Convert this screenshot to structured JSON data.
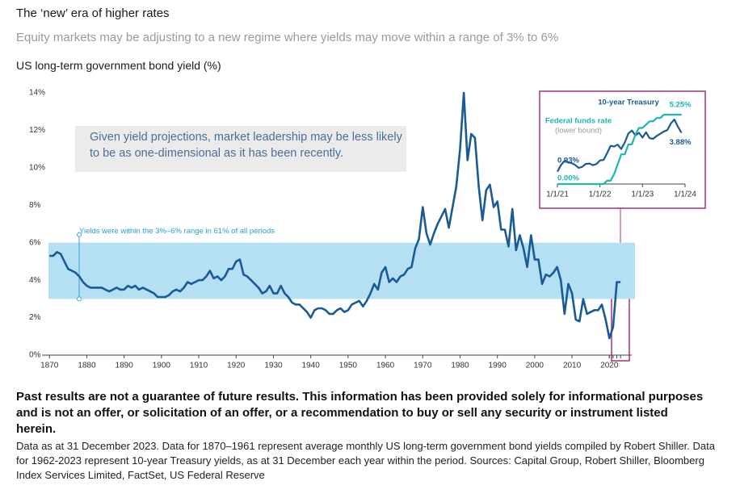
{
  "header": {
    "title": "The ‘new’ era of higher rates",
    "subtitle": "Equity markets may be adjusting to a new regime where yields may move within a range of 3% to 6%"
  },
  "chart_data": [
    {
      "type": "line",
      "title": "US long-term government bond yield (%)",
      "callout": "Given yield projections, market leadership may be less likely to be as one-dimensional as it has been recently.",
      "band": [
        3,
        6
      ],
      "band_label": "Yields were within the 3%–6% range in 61% of all periods",
      "band_color": "#b5dff3",
      "xlim": [
        1868,
        2026
      ],
      "ylim": [
        0,
        14
      ],
      "xticks": [
        1870,
        1880,
        1890,
        1900,
        1910,
        1920,
        1930,
        1940,
        1950,
        1960,
        1970,
        1980,
        1990,
        2000,
        2010,
        2020
      ],
      "yticks": [
        {
          "value": 0,
          "label": "0%"
        },
        {
          "value": 2,
          "label": "2%"
        },
        {
          "value": 4,
          "label": "4%"
        },
        {
          "value": 6,
          "label": "6%"
        },
        {
          "value": 8,
          "label": "8%"
        },
        {
          "value": 10,
          "label": "10%"
        },
        {
          "value": 12,
          "label": "12%"
        },
        {
          "value": 14,
          "label": "14%"
        }
      ],
      "x": [
        1870,
        1871,
        1872,
        1873,
        1874,
        1875,
        1876,
        1877,
        1878,
        1879,
        1880,
        1881,
        1882,
        1883,
        1884,
        1885,
        1886,
        1887,
        1888,
        1889,
        1890,
        1891,
        1892,
        1893,
        1894,
        1895,
        1896,
        1897,
        1898,
        1899,
        1900,
        1901,
        1902,
        1903,
        1904,
        1905,
        1906,
        1907,
        1908,
        1909,
        1910,
        1911,
        1912,
        1913,
        1914,
        1915,
        1916,
        1917,
        1918,
        1919,
        1920,
        1921,
        1922,
        1923,
        1924,
        1925,
        1926,
        1927,
        1928,
        1929,
        1930,
        1931,
        1932,
        1933,
        1934,
        1935,
        1936,
        1937,
        1938,
        1939,
        1940,
        1941,
        1942,
        1943,
        1944,
        1945,
        1946,
        1947,
        1948,
        1949,
        1950,
        1951,
        1952,
        1953,
        1954,
        1955,
        1956,
        1957,
        1958,
        1959,
        1960,
        1961,
        1962,
        1963,
        1964,
        1965,
        1966,
        1967,
        1968,
        1969,
        1970,
        1971,
        1972,
        1973,
        1974,
        1975,
        1976,
        1977,
        1978,
        1979,
        1980,
        1981,
        1982,
        1983,
        1984,
        1985,
        1986,
        1987,
        1988,
        1989,
        1990,
        1991,
        1992,
        1993,
        1994,
        1995,
        1996,
        1997,
        1998,
        1999,
        2000,
        2001,
        2002,
        2003,
        2004,
        2005,
        2006,
        2007,
        2008,
        2009,
        2010,
        2011,
        2012,
        2013,
        2014,
        2015,
        2016,
        2017,
        2018,
        2019,
        2020,
        2021,
        2022,
        2023
      ],
      "series": [
        {
          "name": "US long-term government bond yield",
          "color": "#1a5a96",
          "values": [
            5.3,
            5.3,
            5.5,
            5.4,
            5.0,
            4.6,
            4.5,
            4.4,
            4.2,
            3.9,
            3.7,
            3.6,
            3.6,
            3.6,
            3.6,
            3.5,
            3.4,
            3.5,
            3.6,
            3.5,
            3.5,
            3.7,
            3.6,
            3.7,
            3.5,
            3.6,
            3.5,
            3.4,
            3.3,
            3.1,
            3.1,
            3.1,
            3.2,
            3.4,
            3.5,
            3.4,
            3.6,
            3.9,
            3.8,
            3.9,
            4.0,
            4.0,
            4.2,
            4.5,
            4.1,
            4.2,
            4.0,
            4.2,
            4.6,
            4.6,
            5.0,
            5.1,
            4.3,
            4.2,
            4.0,
            3.8,
            3.6,
            3.3,
            3.4,
            3.7,
            3.3,
            3.3,
            3.7,
            3.3,
            3.1,
            2.8,
            2.7,
            2.7,
            2.5,
            2.3,
            2.0,
            2.4,
            2.5,
            2.5,
            2.4,
            2.2,
            2.2,
            2.4,
            2.5,
            2.3,
            2.4,
            2.7,
            2.8,
            2.9,
            2.6,
            2.9,
            3.3,
            3.8,
            3.5,
            4.4,
            4.7,
            3.9,
            4.1,
            3.9,
            4.2,
            4.3,
            4.6,
            4.7,
            5.7,
            6.2,
            7.9,
            6.5,
            5.9,
            6.5,
            7.0,
            7.4,
            7.8,
            6.8,
            7.9,
            9.0,
            11.0,
            14.0,
            10.4,
            11.8,
            11.6,
            9.0,
            7.2,
            8.8,
            9.1,
            7.9,
            8.2,
            6.7,
            6.7,
            5.8,
            7.8,
            5.6,
            6.4,
            5.7,
            4.7,
            6.4,
            5.1,
            5.1,
            3.8,
            4.3,
            4.2,
            4.4,
            4.7,
            4.0,
            2.2,
            3.8,
            3.3,
            1.9,
            1.8,
            3.0,
            2.2,
            2.3,
            2.4,
            2.4,
            2.7,
            1.9,
            0.9,
            1.5,
            3.9,
            3.9
          ]
        }
      ]
    },
    {
      "type": "line",
      "highlight_color": "#a4347f",
      "xlim": [
        "2021-01",
        "2024-01"
      ],
      "ylim": [
        0,
        5.5
      ],
      "xticks": [
        {
          "value": "2021-01",
          "label": "1/1/21"
        },
        {
          "value": "2022-01",
          "label": "1/1/22"
        },
        {
          "value": "2023-01",
          "label": "1/1/23"
        },
        {
          "value": "2024-01",
          "label": "1/1/24"
        }
      ],
      "x": [
        "2021-01",
        "2021-02",
        "2021-03",
        "2021-04",
        "2021-05",
        "2021-06",
        "2021-07",
        "2021-08",
        "2021-09",
        "2021-10",
        "2021-11",
        "2021-12",
        "2022-01",
        "2022-02",
        "2022-03",
        "2022-04",
        "2022-05",
        "2022-06",
        "2022-07",
        "2022-08",
        "2022-09",
        "2022-10",
        "2022-11",
        "2022-12",
        "2023-01",
        "2023-02",
        "2023-03",
        "2023-04",
        "2023-05",
        "2023-06",
        "2023-07",
        "2023-08",
        "2023-09",
        "2023-10",
        "2023-11",
        "2023-12"
      ],
      "series": [
        {
          "name": "10-year Treasury",
          "color": "#1a5a96",
          "values": [
            0.93,
            1.44,
            1.74,
            1.63,
            1.58,
            1.45,
            1.22,
            1.3,
            1.52,
            1.55,
            1.43,
            1.51,
            1.79,
            1.83,
            2.32,
            2.89,
            2.84,
            2.98,
            2.65,
            3.15,
            3.83,
            4.05,
            3.68,
            3.88,
            3.52,
            3.92,
            3.47,
            3.42,
            3.64,
            3.81,
            3.97,
            4.09,
            4.59,
            4.88,
            4.33,
            3.88
          ],
          "value_labels": [
            "0.93%",
            null,
            null,
            null,
            null,
            null,
            null,
            null,
            null,
            null,
            null,
            null,
            null,
            null,
            null,
            null,
            null,
            null,
            null,
            null,
            null,
            null,
            null,
            null,
            null,
            null,
            null,
            null,
            null,
            null,
            null,
            null,
            null,
            null,
            null,
            "3.88%"
          ]
        },
        {
          "name": "Federal funds rate",
          "note": "(lower bound)",
          "color": "#1fb5b0",
          "values": [
            0,
            0,
            0,
            0,
            0,
            0,
            0,
            0,
            0,
            0,
            0,
            0,
            0,
            0,
            0.25,
            0.25,
            0.75,
            1.5,
            2.25,
            2.25,
            3.0,
            3.0,
            3.75,
            4.25,
            4.25,
            4.5,
            4.75,
            4.75,
            5.0,
            5.0,
            5.25,
            5.25,
            5.25,
            5.25,
            5.25,
            5.25
          ],
          "value_labels": [
            "0.00%",
            null,
            null,
            null,
            null,
            null,
            null,
            null,
            null,
            null,
            null,
            null,
            null,
            null,
            null,
            null,
            null,
            null,
            null,
            null,
            null,
            null,
            null,
            null,
            null,
            null,
            null,
            null,
            null,
            null,
            null,
            null,
            null,
            null,
            null,
            "5.25%"
          ]
        }
      ]
    }
  ],
  "footer": {
    "disclaimer": "Past results are not a guarantee of future results. This information has been provided solely for informational purposes and is not an offer, or solicitation of an offer, or a recommendation to buy or sell any security or instrument listed herein.",
    "notes": "Data as at 31 December 2023. Data for 1870–1961 represent average monthly US long-term government bond yields compiled by Robert Shiller. Data for 1962-2023 represent 10-year Treasury yields, as at 31 December each year within the period. Sources: Capital Group, Robert Shiller, Bloomberg Index Services Limited, FactSet, US Federal Reserve"
  }
}
